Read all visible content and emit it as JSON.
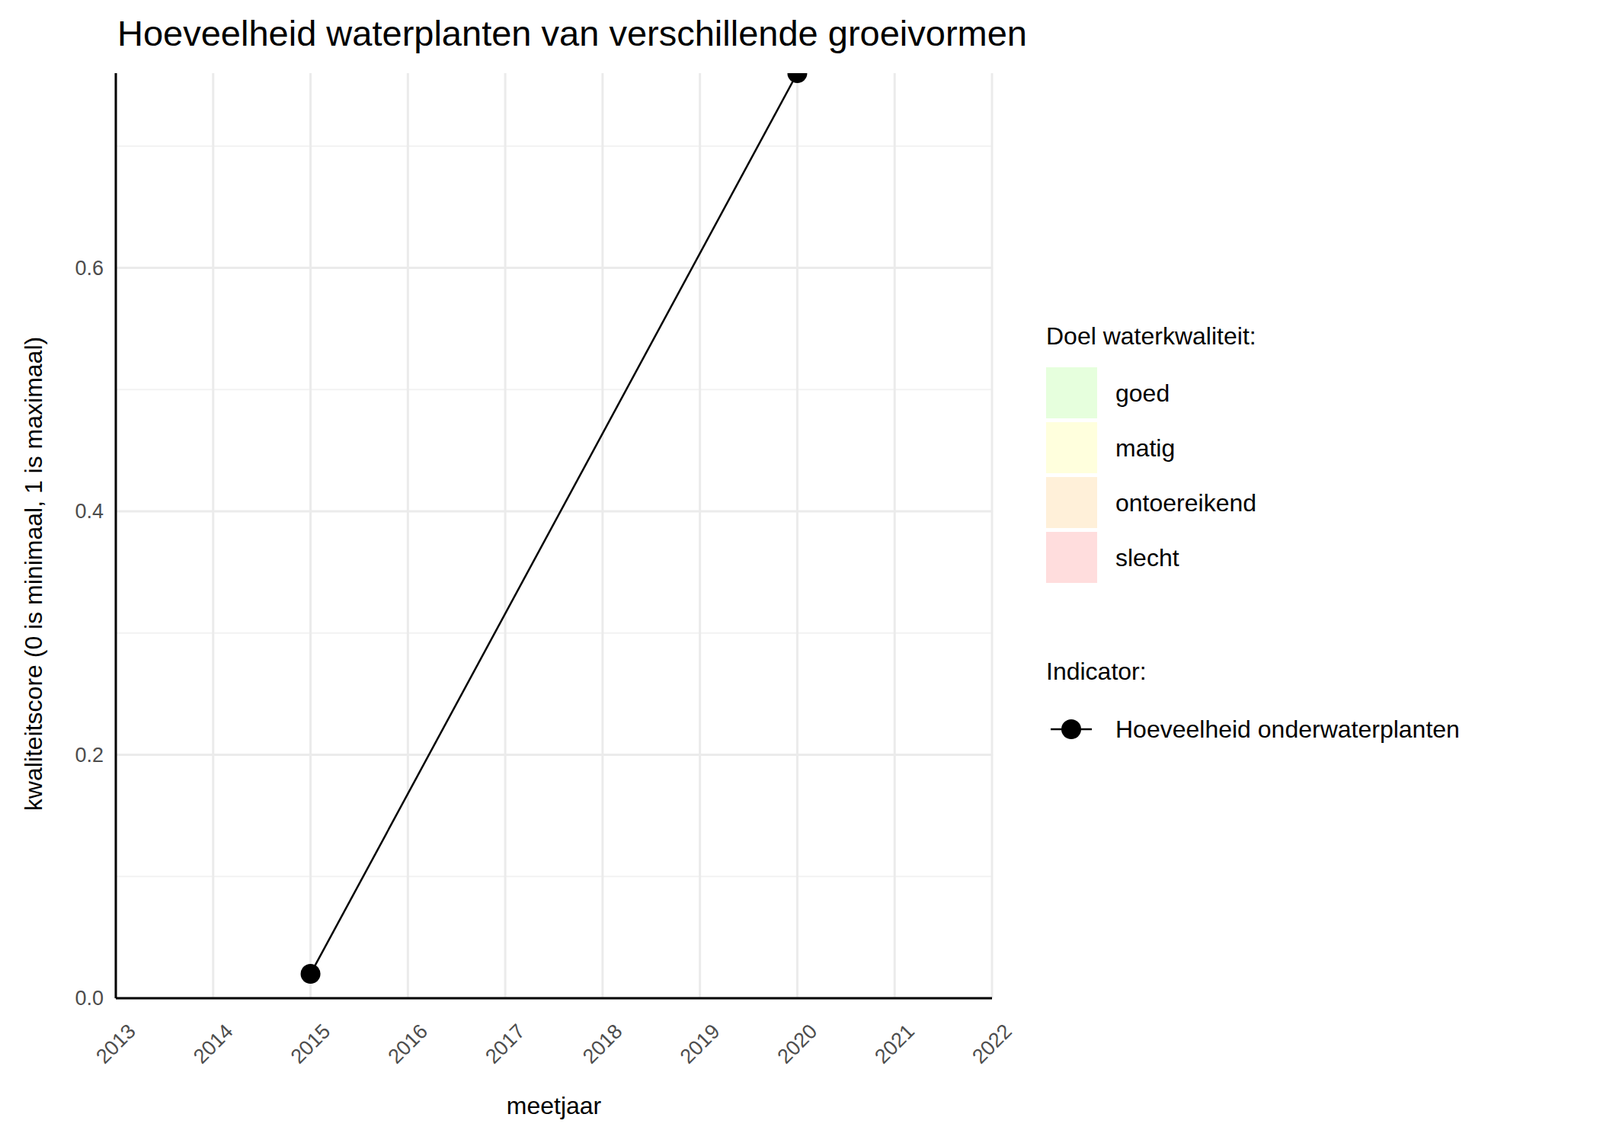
{
  "chart_data": {
    "type": "line",
    "title": "Hoeveelheid waterplanten van verschillende groeivormen",
    "x_label": "meetjaar",
    "y_label": "kwaliteitscore (0 is minimaal, 1 is maximaal)",
    "x": [
      2015,
      2020
    ],
    "series": [
      {
        "name": "Hoeveelheid onderwaterplanten",
        "color": "#000000",
        "marker": "circle",
        "line_style": "solid",
        "values": [
          0.02,
          0.76
        ]
      }
    ],
    "xlim": [
      2013,
      2022
    ],
    "xticks": [
      2013,
      2014,
      2015,
      2016,
      2017,
      2018,
      2019,
      2020,
      2021,
      2022
    ],
    "ylim": [
      0,
      0.76
    ],
    "yticks": [
      {
        "value": 0,
        "label": "0.0"
      },
      0.2,
      0.4,
      0.6
    ],
    "grid": true,
    "quality_legend_title": "Doel waterkwaliteit:",
    "quality_classes": [
      {
        "name": "goed",
        "color": "#e6ffdd"
      },
      {
        "name": "matig",
        "color": "#ffffdd"
      },
      {
        "name": "ontoereikend",
        "color": "#fff0d9"
      },
      {
        "name": "slecht",
        "color": "#ffdddd"
      }
    ],
    "indicator_legend_title": "Indicator:"
  }
}
